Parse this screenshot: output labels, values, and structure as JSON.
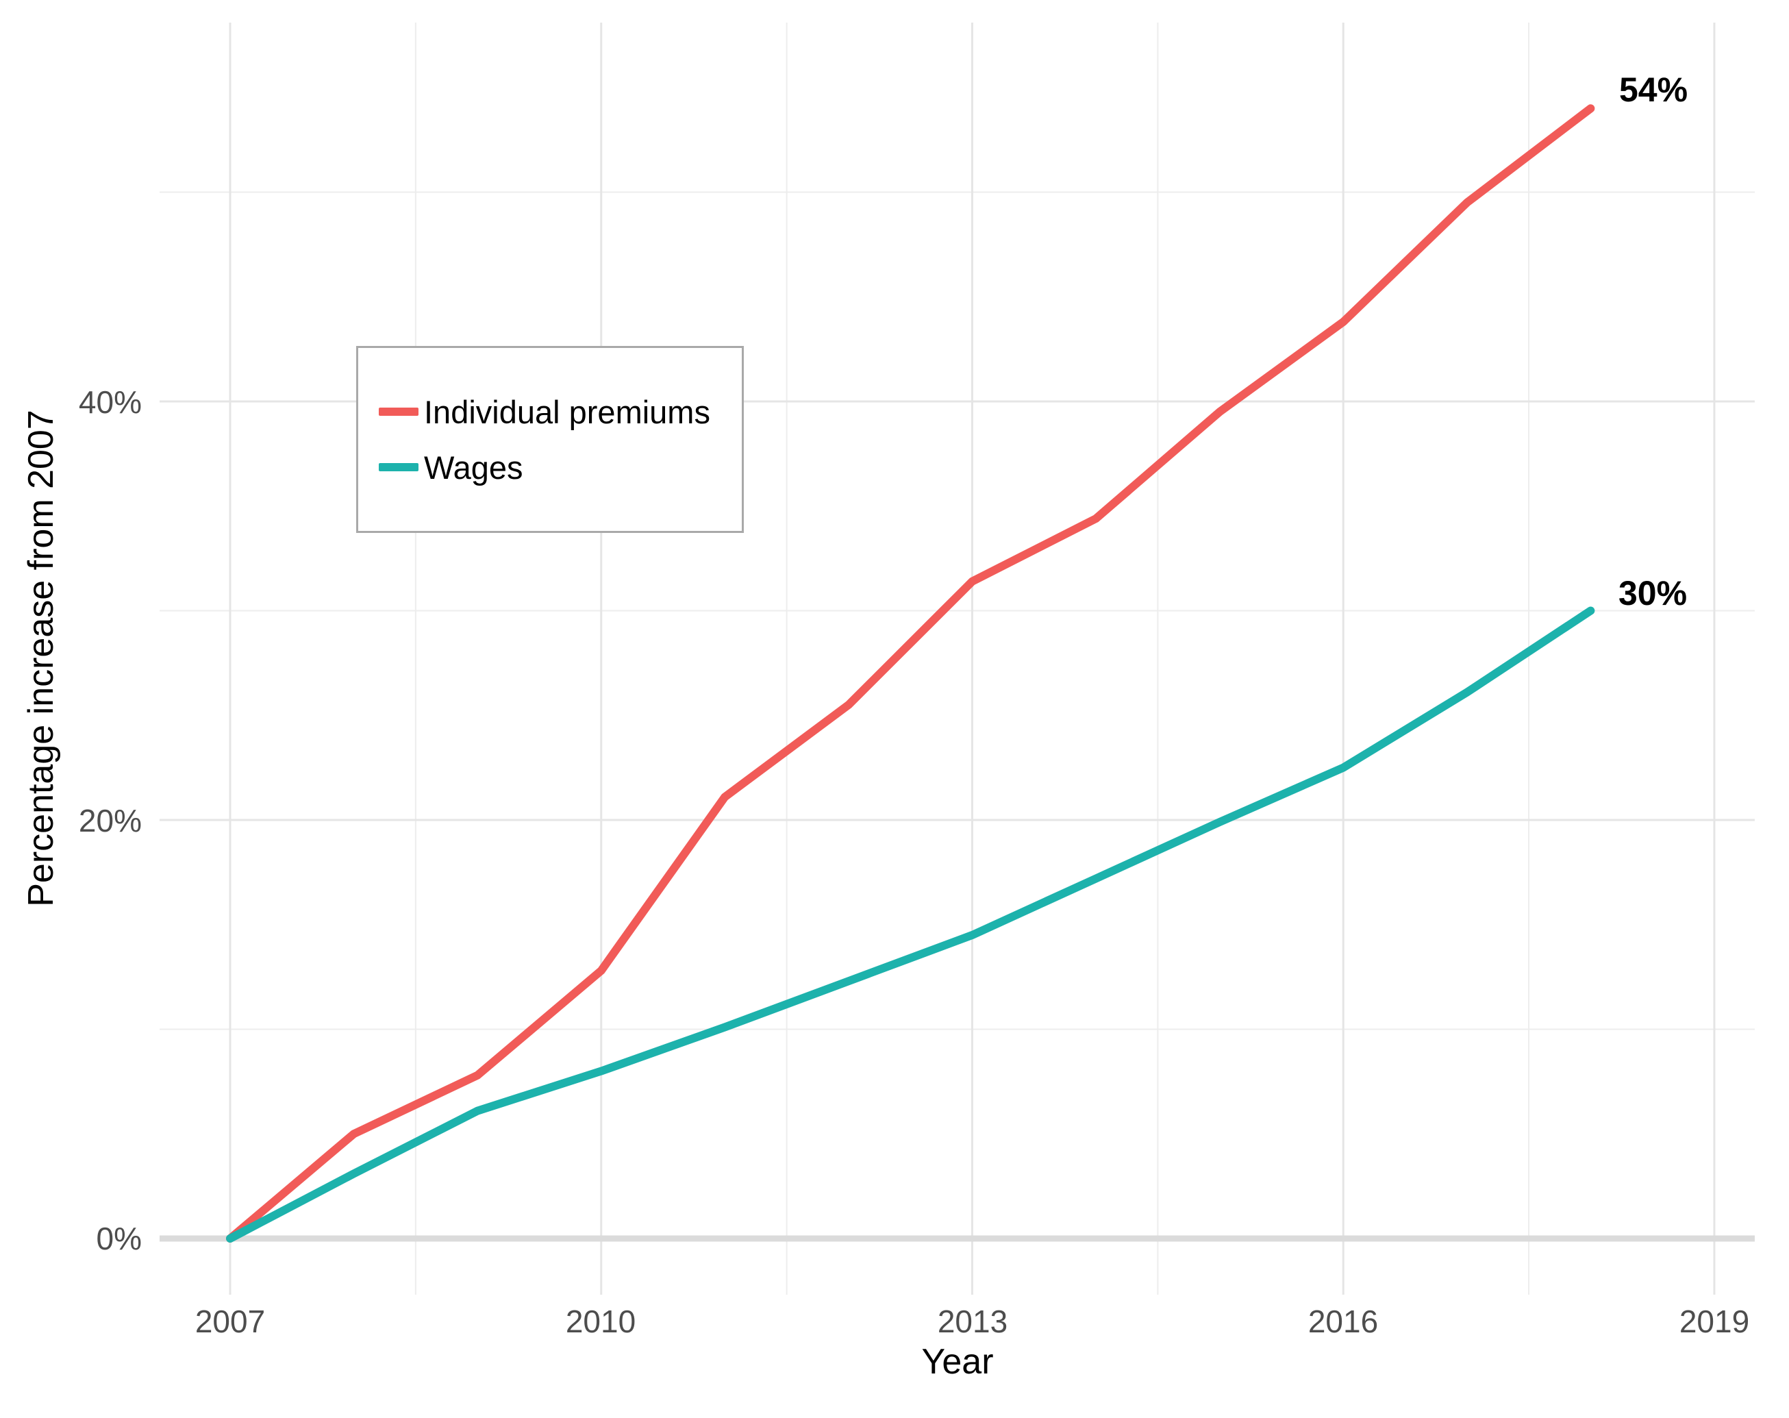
{
  "chart_data": {
    "type": "line",
    "title": "",
    "xlabel": "Year",
    "ylabel": "Percentage increase from 2007",
    "x": [
      2007,
      2008,
      2009,
      2010,
      2011,
      2012,
      2013,
      2014,
      2015,
      2016,
      2017,
      2018
    ],
    "series": [
      {
        "name": "Individual premiums",
        "color": "#F15B58",
        "values": [
          0,
          5,
          7.8,
          12.8,
          21.1,
          25.5,
          31.4,
          34.4,
          39.5,
          43.8,
          49.5,
          54
        ],
        "end_label": "54%"
      },
      {
        "name": "Wages",
        "color": "#1DB2AC",
        "values": [
          0,
          3.1,
          6.1,
          8,
          10.1,
          12.3,
          14.5,
          17.2,
          19.9,
          22.5,
          26.1,
          30
        ],
        "end_label": "30%"
      }
    ],
    "x_ticks": [
      {
        "value": 2007,
        "label": "2007"
      },
      {
        "value": 2010,
        "label": "2010"
      },
      {
        "value": 2013,
        "label": "2013"
      },
      {
        "value": 2016,
        "label": "2016"
      },
      {
        "value": 2019,
        "label": "2019"
      }
    ],
    "y_ticks": [
      {
        "value": 0,
        "label": "0%"
      },
      {
        "value": 20,
        "label": "20%"
      },
      {
        "value": 40,
        "label": "40%"
      }
    ],
    "x_minor_ticks": [
      2008.5,
      2011.5,
      2014.5,
      2017.5
    ],
    "y_minor_ticks": [
      10,
      30,
      50
    ],
    "xlim": [
      2007,
      2019
    ],
    "ylim": [
      -2.7,
      58
    ],
    "grid": "on",
    "legend_position": "upper-left-inside",
    "zero_line": true
  },
  "colors": {
    "premiums": "#F15B58",
    "wages": "#1DB2AC",
    "grid_major": "#E5E5E5",
    "grid_minor": "#EDEDED",
    "zero_line": "#DBDBDB",
    "tick_text": "#4D4D4D",
    "title_text": "#000000"
  }
}
